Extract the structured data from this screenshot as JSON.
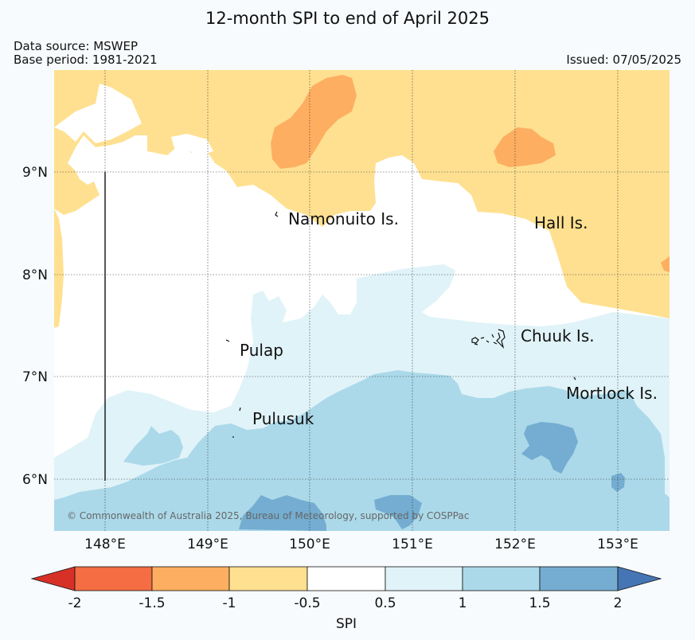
{
  "title": "12-month SPI to end of April 2025",
  "data_source": "Data source: MSWEP",
  "base_period": "Base period: 1981-2021",
  "issued": "Issued: 07/05/2025",
  "copyright": "© Commonwealth of Australia 2025, Bureau of Meteorology, supported by COSPPac",
  "map": {
    "lon_labels": [
      "148°E",
      "149°E",
      "150°E",
      "151°E",
      "152°E",
      "153°E"
    ],
    "lat_labels": [
      "9°N",
      "8°N",
      "7°N",
      "6°N"
    ],
    "places": {
      "namonuito": "Namonuito Is.",
      "hall": "Hall Is.",
      "chuuk": "Chuuk Is.",
      "pulap": "Pulap",
      "mortlock": "Mortlock Is.",
      "pulusuk": "Pulusuk"
    }
  },
  "colorbar": {
    "label": "SPI",
    "ticks": [
      "-2",
      "-1.5",
      "-1",
      "-0.5",
      "0.5",
      "1",
      "1.5",
      "2"
    ],
    "colors": [
      "#d73027",
      "#f46d43",
      "#fdae61",
      "#fee090",
      "#ffffff",
      "#e0f3f8",
      "#abd9e9",
      "#74add1",
      "#4575b4"
    ]
  }
}
